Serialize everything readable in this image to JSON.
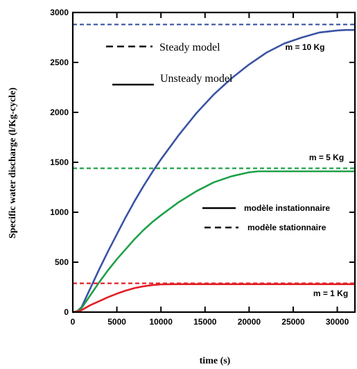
{
  "chart_data": {
    "type": "line",
    "xlabel": "time (s)",
    "ylabel": "Specific water discharge (l/Kg-cycle)",
    "xlim": [
      0,
      32000
    ],
    "ylim": [
      0,
      3000
    ],
    "xticks": [
      0,
      5000,
      10000,
      15000,
      20000,
      25000,
      30000
    ],
    "yticks": [
      0,
      500,
      1000,
      1500,
      2000,
      2500,
      3000
    ],
    "grid": false,
    "colors": {
      "m10": "#3a53a4",
      "m5": "#1fa049",
      "m1": "#e31e24"
    },
    "series": [
      {
        "group": "m10",
        "style": "solid",
        "x": [
          0,
          500,
          1000,
          2000,
          3000,
          4000,
          5000,
          6000,
          7000,
          8000,
          9000,
          10000,
          12000,
          14000,
          16000,
          18000,
          20000,
          22000,
          24000,
          26000,
          28000,
          30000,
          31000,
          32000
        ],
        "y": [
          0,
          10,
          50,
          240,
          430,
          610,
          780,
          950,
          1110,
          1260,
          1400,
          1530,
          1770,
          1990,
          2180,
          2340,
          2480,
          2600,
          2690,
          2750,
          2800,
          2820,
          2825,
          2825
        ]
      },
      {
        "group": "m10",
        "style": "dashed",
        "x": [
          0,
          32000
        ],
        "y": [
          2880,
          2880
        ]
      },
      {
        "group": "m5",
        "style": "solid",
        "x": [
          0,
          500,
          1000,
          2000,
          3000,
          4000,
          5000,
          6000,
          7000,
          8000,
          9000,
          10000,
          12000,
          14000,
          16000,
          18000,
          20000,
          21000,
          22000,
          24000,
          26000,
          28000,
          30000,
          32000
        ],
        "y": [
          0,
          10,
          40,
          170,
          300,
          420,
          530,
          630,
          730,
          820,
          900,
          970,
          1100,
          1210,
          1300,
          1360,
          1400,
          1410,
          1410,
          1410,
          1410,
          1410,
          1410,
          1410
        ]
      },
      {
        "group": "m5",
        "style": "dashed",
        "x": [
          0,
          32000
        ],
        "y": [
          1440,
          1440
        ]
      },
      {
        "group": "m1",
        "style": "solid",
        "x": [
          0,
          500,
          1000,
          2000,
          3000,
          4000,
          5000,
          6000,
          7000,
          8000,
          9000,
          10000,
          12000,
          15000,
          20000,
          25000,
          30000,
          32000
        ],
        "y": [
          0,
          5,
          20,
          70,
          110,
          150,
          185,
          215,
          240,
          258,
          270,
          278,
          280,
          280,
          280,
          280,
          280,
          280
        ]
      },
      {
        "group": "m1",
        "style": "dashed",
        "x": [
          0,
          32000
        ],
        "y": [
          288,
          288
        ]
      }
    ],
    "annotations": {
      "m10": "m = 10 Kg",
      "m5": "m = 5 Kg",
      "m1": "m = 1 Kg"
    },
    "legends": {
      "steady": "Steady model",
      "unsteady": "Unsteady model",
      "instationnaire": "modèle instationnaire",
      "stationnaire": "modèle stationnaire"
    }
  }
}
